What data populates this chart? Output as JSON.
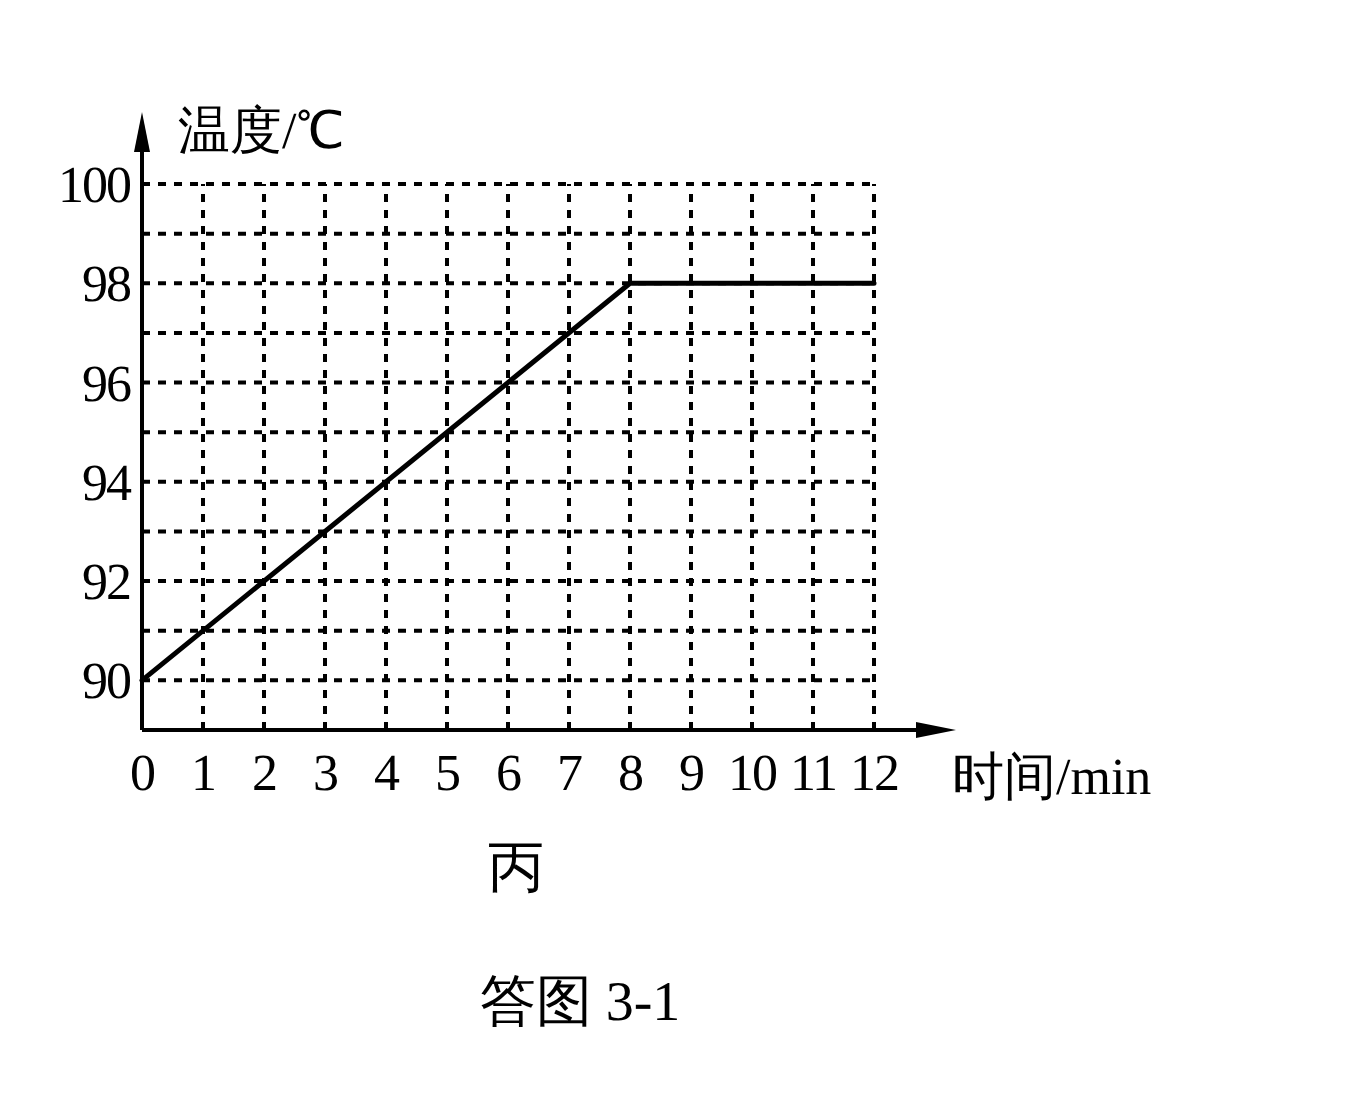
{
  "chart_data": {
    "type": "line",
    "xlabel": "时间/min",
    "ylabel": "温度/℃",
    "annotations": [
      "丙",
      "答图 3-1"
    ],
    "series": [
      {
        "color": "#000000",
        "x": [
          0,
          8,
          12
        ],
        "values": [
          90,
          98,
          98
        ]
      }
    ],
    "xlim": [
      0,
      12
    ],
    "xticks": [
      0,
      1,
      2,
      3,
      4,
      5,
      6,
      7,
      8,
      9,
      10,
      11,
      12
    ],
    "ylim": [
      89,
      100
    ],
    "yticks": [
      {
        "value": 89,
        "label": null
      },
      90,
      {
        "value": 91,
        "label": null
      },
      92,
      {
        "value": 93,
        "label": null
      },
      94,
      {
        "value": 95,
        "label": null
      },
      96,
      {
        "value": 97,
        "label": null
      },
      98,
      {
        "value": 99,
        "label": null
      },
      100
    ],
    "grid": true,
    "line_style": "solid",
    "marker": "none"
  }
}
